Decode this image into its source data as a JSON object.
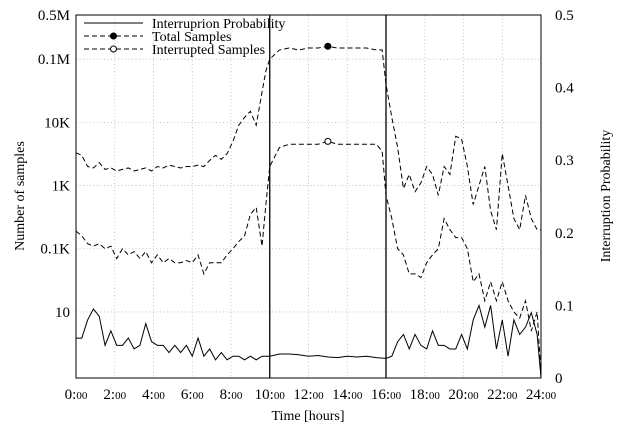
{
  "chart_data": {
    "type": "line",
    "xlabel": "Time [hours]",
    "ylabel_left": "Number of samples",
    "ylabel_right": "Interruption Probability",
    "x_range": [
      0,
      24
    ],
    "x_ticks": [
      {
        "value": 0,
        "major": "0:",
        "minor": "00"
      },
      {
        "value": 2,
        "major": "2:",
        "minor": "00"
      },
      {
        "value": 4,
        "major": "4:",
        "minor": "00"
      },
      {
        "value": 6,
        "major": "6:",
        "minor": "00"
      },
      {
        "value": 8,
        "major": "8:",
        "minor": "00"
      },
      {
        "value": 10,
        "major": "10:",
        "minor": "00"
      },
      {
        "value": 12,
        "major": "12:",
        "minor": "00"
      },
      {
        "value": 14,
        "major": "14:",
        "minor": "00"
      },
      {
        "value": 16,
        "major": "16:",
        "minor": "00"
      },
      {
        "value": 18,
        "major": "18:",
        "minor": "00"
      },
      {
        "value": 20,
        "major": "20:",
        "minor": "00"
      },
      {
        "value": 22,
        "major": "22:",
        "minor": "00"
      },
      {
        "value": 24,
        "major": "24:",
        "minor": "00"
      }
    ],
    "y_left_scale": "log",
    "y_left_range": [
      0.9,
      500000
    ],
    "y_left_ticks": [
      {
        "value": 10,
        "label": "10"
      },
      {
        "value": 100,
        "label": "0.1K"
      },
      {
        "value": 1000,
        "label": "1K"
      },
      {
        "value": 10000,
        "label": "10K"
      },
      {
        "value": 100000,
        "label": "0.1M"
      },
      {
        "value": 500000,
        "label": "0.5M"
      }
    ],
    "y_right_scale": "linear",
    "y_right_range": [
      0,
      0.5
    ],
    "y_right_ticks": [
      {
        "value": 0,
        "label": "0"
      },
      {
        "value": 0.1,
        "label": "0.1"
      },
      {
        "value": 0.2,
        "label": "0.2"
      },
      {
        "value": 0.3,
        "label": "0.3"
      },
      {
        "value": 0.4,
        "label": "0.4"
      },
      {
        "value": 0.5,
        "label": "0.5"
      }
    ],
    "grid": true,
    "legend_position": "top-left",
    "vertical_markers": [
      10,
      16
    ],
    "series": [
      {
        "name": "Interruprion Probability",
        "axis": "right",
        "style": "solid",
        "marker": "none",
        "x": [
          0,
          0.3,
          0.6,
          0.9,
          1.2,
          1.5,
          1.8,
          2.1,
          2.4,
          2.7,
          3,
          3.3,
          3.6,
          3.9,
          4.2,
          4.5,
          4.8,
          5.1,
          5.4,
          5.7,
          6,
          6.3,
          6.6,
          6.9,
          7.2,
          7.5,
          7.8,
          8.1,
          8.4,
          8.7,
          9,
          9.3,
          9.6,
          10,
          10.5,
          11,
          11.5,
          12,
          12.5,
          13,
          13.5,
          14,
          14.5,
          15,
          15.5,
          16,
          16.3,
          16.6,
          16.9,
          17.2,
          17.5,
          17.8,
          18.1,
          18.4,
          18.7,
          19,
          19.3,
          19.6,
          19.9,
          20.2,
          20.5,
          20.8,
          21.1,
          21.4,
          21.7,
          22,
          22.3,
          22.6,
          22.9,
          23.2,
          23.5,
          23.8,
          24
        ],
        "values": [
          0.055,
          0.055,
          0.08,
          0.095,
          0.085,
          0.045,
          0.065,
          0.045,
          0.045,
          0.055,
          0.04,
          0.045,
          0.075,
          0.05,
          0.045,
          0.045,
          0.035,
          0.045,
          0.035,
          0.045,
          0.03,
          0.055,
          0.03,
          0.04,
          0.025,
          0.035,
          0.025,
          0.03,
          0.03,
          0.025,
          0.03,
          0.025,
          0.03,
          0.03,
          0.033,
          0.033,
          0.032,
          0.03,
          0.031,
          0.029,
          0.028,
          0.03,
          0.029,
          0.03,
          0.028,
          0.027,
          0.03,
          0.05,
          0.06,
          0.04,
          0.06,
          0.045,
          0.04,
          0.065,
          0.045,
          0.045,
          0.04,
          0.04,
          0.06,
          0.04,
          0.08,
          0.1,
          0.07,
          0.1,
          0.04,
          0.08,
          0.03,
          0.08,
          0.06,
          0.07,
          0.09,
          0.06,
          0
        ]
      },
      {
        "name": "Total Samples",
        "axis": "left",
        "style": "dashed",
        "marker": "filled-circle",
        "x": [
          0,
          0.3,
          0.6,
          0.9,
          1.2,
          1.5,
          1.8,
          2.1,
          2.4,
          2.7,
          3,
          3.3,
          3.6,
          3.9,
          4.2,
          4.5,
          4.8,
          5.1,
          5.4,
          5.7,
          6,
          6.3,
          6.6,
          6.9,
          7.2,
          7.5,
          7.8,
          8.1,
          8.4,
          8.7,
          9,
          9.3,
          9.6,
          9.8,
          10,
          10.5,
          11,
          11.5,
          12,
          12.5,
          13,
          13.5,
          14,
          14.5,
          15,
          15.5,
          15.8,
          16,
          16.3,
          16.6,
          16.9,
          17.2,
          17.5,
          17.8,
          18.1,
          18.4,
          18.7,
          19,
          19.3,
          19.6,
          19.9,
          20.2,
          20.5,
          20.8,
          21.1,
          21.4,
          21.7,
          22,
          22.3,
          22.6,
          22.9,
          23.2,
          23.5,
          23.8,
          24
        ],
        "values": [
          3300,
          3000,
          2000,
          1900,
          2300,
          1800,
          1900,
          1700,
          1800,
          1900,
          1700,
          1800,
          1900,
          1700,
          2000,
          1900,
          2100,
          2000,
          1900,
          2000,
          2000,
          2100,
          2000,
          2500,
          3000,
          2600,
          3200,
          5000,
          9000,
          12000,
          15000,
          9000,
          30000,
          65000,
          100000,
          140000,
          150000,
          140000,
          150000,
          150000,
          160000,
          150000,
          150000,
          150000,
          150000,
          140000,
          140000,
          40000,
          12000,
          4000,
          900,
          1500,
          800,
          1100,
          2000,
          1500,
          700,
          2000,
          1500,
          6000,
          5500,
          2000,
          500,
          1000,
          2000,
          400,
          200,
          3200,
          1000,
          300,
          200,
          700,
          300,
          200,
          200
        ]
      },
      {
        "name": "Interrupted Samples",
        "axis": "left",
        "style": "dashed",
        "marker": "open-circle",
        "x": [
          0,
          0.3,
          0.6,
          0.9,
          1.2,
          1.5,
          1.8,
          2.1,
          2.4,
          2.7,
          3,
          3.3,
          3.6,
          3.9,
          4.2,
          4.5,
          4.8,
          5.1,
          5.4,
          5.7,
          6,
          6.3,
          6.6,
          6.9,
          7.2,
          7.5,
          7.8,
          8.1,
          8.4,
          8.7,
          9,
          9.3,
          9.6,
          9.8,
          10,
          10.5,
          11,
          11.5,
          12,
          12.5,
          13,
          13.5,
          14,
          14.5,
          15,
          15.5,
          15.8,
          16,
          16.3,
          16.6,
          16.9,
          17.2,
          17.5,
          17.8,
          18.1,
          18.4,
          18.7,
          19,
          19.3,
          19.6,
          19.9,
          20.2,
          20.5,
          20.8,
          21.1,
          21.4,
          21.7,
          22,
          22.3,
          22.6,
          22.9,
          23.2,
          23.5,
          23.8,
          24
        ],
        "values": [
          190,
          160,
          120,
          110,
          120,
          100,
          110,
          70,
          100,
          80,
          90,
          70,
          90,
          60,
          80,
          60,
          70,
          60,
          60,
          65,
          60,
          80,
          40,
          60,
          60,
          60,
          80,
          100,
          130,
          160,
          350,
          450,
          110,
          500,
          2000,
          4000,
          4500,
          4500,
          4500,
          4500,
          5000,
          4500,
          4500,
          4500,
          4500,
          4500,
          3500,
          700,
          300,
          100,
          80,
          40,
          40,
          35,
          60,
          80,
          100,
          300,
          200,
          150,
          150,
          100,
          30,
          40,
          15,
          30,
          15,
          30,
          15,
          10,
          8,
          15,
          5,
          10,
          1
        ]
      }
    ],
    "markers": [
      {
        "series": "Total Samples",
        "x": 13,
        "value": 160000
      },
      {
        "series": "Interrupted Samples",
        "x": 13,
        "value": 5000
      }
    ]
  }
}
